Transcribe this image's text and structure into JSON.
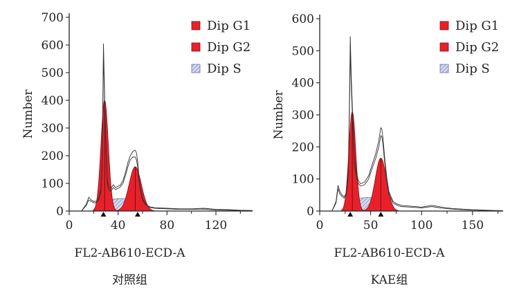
{
  "chart_data": [
    {
      "type": "histogram",
      "group_label": "对照组",
      "xlabel": "FL2-AB610-ECD-A",
      "ylabel": "Number",
      "xlim": [
        0,
        150
      ],
      "ylim": [
        0,
        700
      ],
      "xticks": [
        0,
        40,
        80,
        120
      ],
      "yticks": [
        0,
        100,
        200,
        300,
        400,
        500,
        600,
        700
      ],
      "legend_position": "top-right",
      "legend": [
        {
          "label": "Dip G1",
          "fill": "#e8202a",
          "pattern": "solid"
        },
        {
          "label": "Dip G2",
          "fill": "#e8202a",
          "pattern": "solid"
        },
        {
          "label": "Dip S",
          "fill": "#c9cde8",
          "pattern": "hatched"
        }
      ],
      "peak_markers": [
        28,
        56
      ],
      "g1": {
        "mean": 29,
        "sd": 3.0,
        "height": 400
      },
      "g2": {
        "mean": 54,
        "sd": 5.0,
        "height": 160
      },
      "s_phase": {
        "from": 30,
        "to": 56,
        "height": 45
      },
      "raw_histogram": {
        "x": [
          0,
          10,
          14,
          16,
          18,
          20,
          22,
          24,
          26,
          27,
          28,
          29,
          30,
          31,
          32,
          34,
          36,
          38,
          40,
          42,
          44,
          46,
          48,
          50,
          52,
          54,
          55,
          56,
          57,
          58,
          60,
          62,
          64,
          66,
          70,
          80,
          90,
          100,
          110,
          120,
          130,
          140,
          150
        ],
        "upper": [
          0,
          0,
          25,
          50,
          40,
          35,
          35,
          45,
          80,
          180,
          605,
          420,
          250,
          120,
          90,
          80,
          95,
          85,
          90,
          95,
          110,
          140,
          175,
          200,
          215,
          220,
          210,
          180,
          130,
          90,
          45,
          30,
          20,
          15,
          12,
          10,
          8,
          8,
          10,
          6,
          5,
          3,
          2
        ],
        "lower": [
          0,
          0,
          20,
          40,
          35,
          30,
          30,
          40,
          70,
          160,
          560,
          400,
          230,
          110,
          80,
          70,
          85,
          78,
          82,
          88,
          100,
          128,
          160,
          185,
          195,
          195,
          185,
          160,
          115,
          80,
          38,
          25,
          18,
          13,
          10,
          8,
          6,
          6,
          7,
          4,
          3,
          2,
          1
        ]
      }
    },
    {
      "type": "histogram",
      "group_label": "KAE组",
      "xlabel": "FL2-AB610-ECD-A",
      "ylabel": "Number",
      "xlim": [
        0,
        180
      ],
      "ylim": [
        0,
        600
      ],
      "xticks": [
        0,
        50,
        100,
        150
      ],
      "yticks": [
        0,
        100,
        200,
        300,
        400,
        500,
        600
      ],
      "legend_position": "top-right",
      "legend": [
        {
          "label": "Dip G1",
          "fill": "#e8202a",
          "pattern": "solid"
        },
        {
          "label": "Dip G2",
          "fill": "#e8202a",
          "pattern": "solid"
        },
        {
          "label": "Dip S",
          "fill": "#c9cde8",
          "pattern": "hatched"
        }
      ],
      "peak_markers": [
        30,
        60
      ],
      "g1": {
        "mean": 32,
        "sd": 3.4,
        "height": 310
      },
      "g2": {
        "mean": 60,
        "sd": 5.5,
        "height": 165
      },
      "s_phase": {
        "from": 33,
        "to": 62,
        "height": 42
      },
      "raw_histogram": {
        "x": [
          0,
          12,
          16,
          18,
          20,
          22,
          24,
          26,
          28,
          29,
          30,
          31,
          32,
          33,
          34,
          36,
          38,
          40,
          44,
          48,
          52,
          55,
          58,
          60,
          61,
          62,
          64,
          66,
          68,
          72,
          76,
          80,
          90,
          100,
          110,
          120,
          130,
          140,
          150,
          160,
          170,
          180
        ],
        "upper": [
          0,
          0,
          30,
          80,
          60,
          50,
          45,
          55,
          120,
          300,
          545,
          420,
          330,
          250,
          160,
          120,
          95,
          85,
          90,
          110,
          150,
          180,
          220,
          260,
          255,
          230,
          160,
          100,
          60,
          30,
          22,
          18,
          15,
          12,
          18,
          12,
          8,
          6,
          4,
          3,
          2,
          1
        ],
        "lower": [
          0,
          0,
          25,
          70,
          52,
          45,
          40,
          50,
          105,
          270,
          500,
          390,
          305,
          230,
          145,
          110,
          85,
          78,
          82,
          100,
          138,
          165,
          200,
          235,
          232,
          210,
          145,
          90,
          52,
          25,
          18,
          14,
          12,
          10,
          14,
          9,
          6,
          4,
          3,
          2,
          1,
          0
        ]
      }
    }
  ]
}
